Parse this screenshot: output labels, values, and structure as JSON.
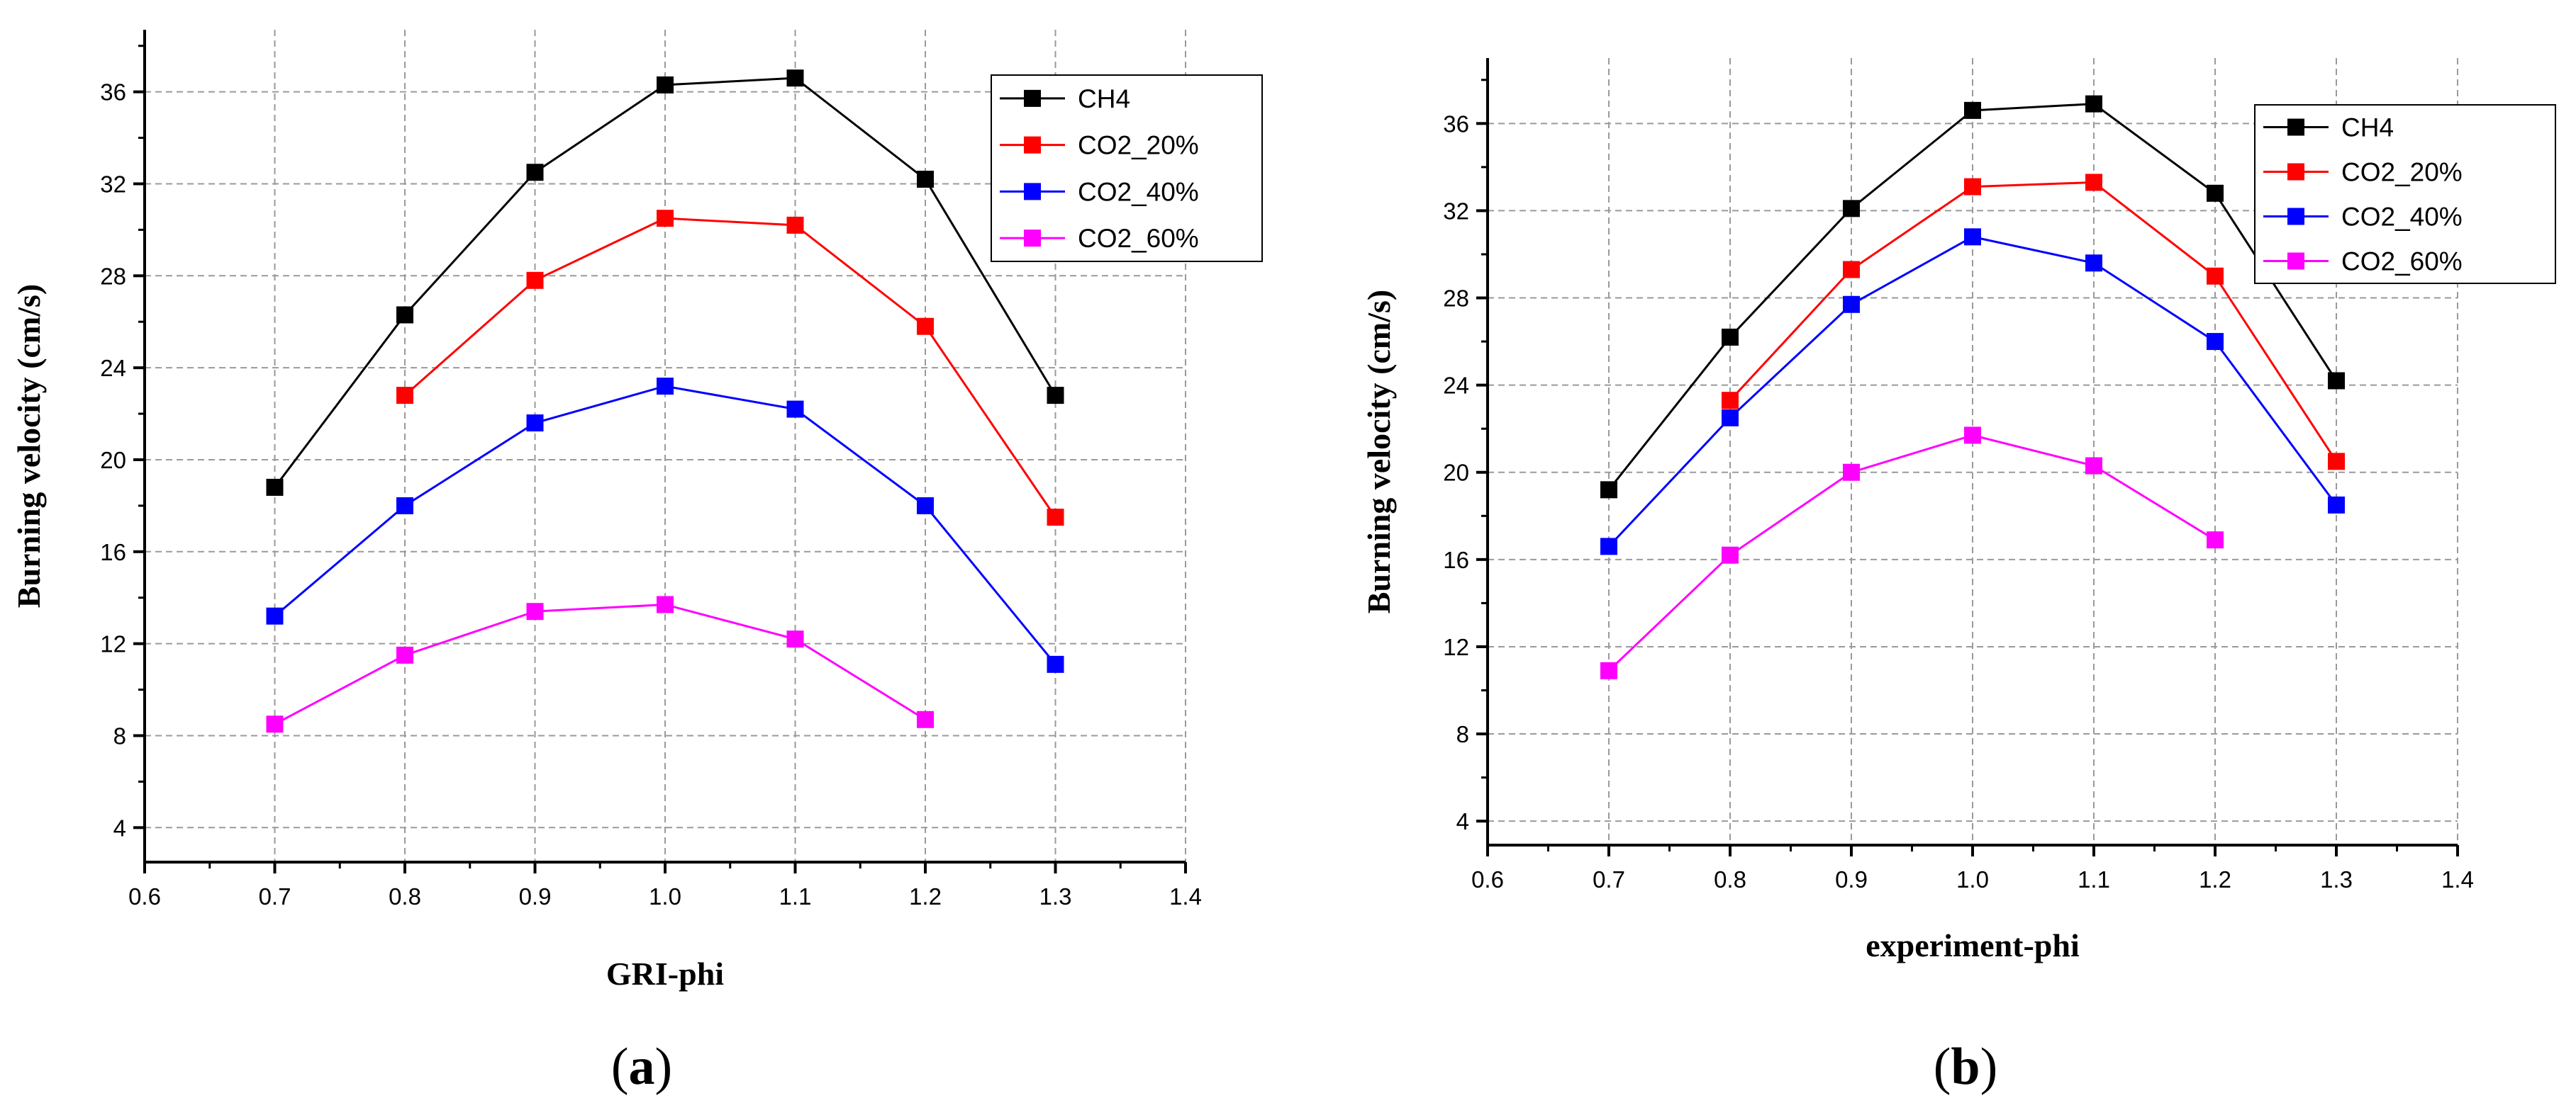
{
  "chart_data": [
    {
      "type": "line",
      "panel": "a",
      "caption_letter": "a",
      "xlabel": "GRI-phi",
      "ylabel": "Burning velocity (cm/s)",
      "xlim": [
        0.6,
        1.4
      ],
      "ylim": [
        2.5,
        38.7
      ],
      "xticks": [
        0.6,
        0.7,
        0.8,
        0.9,
        1.0,
        1.1,
        1.2,
        1.3,
        1.4
      ],
      "xtick_labels": [
        "0.6",
        "0.7",
        "0.8",
        "0.9",
        "1.0",
        "1.1",
        "1.2",
        "1.3",
        "1.4"
      ],
      "yticks": [
        4,
        8,
        12,
        16,
        20,
        24,
        28,
        32,
        36
      ],
      "ytick_labels": [
        "4",
        "8",
        "12",
        "16",
        "20",
        "24",
        "28",
        "32",
        "36"
      ],
      "grid": true,
      "legend": "top-right",
      "series": [
        {
          "name": "CH4",
          "color": "#000000",
          "x": [
            0.7,
            0.8,
            0.9,
            1.0,
            1.1,
            1.2,
            1.3
          ],
          "values": [
            18.8,
            26.3,
            32.5,
            36.3,
            36.6,
            32.2,
            22.8
          ]
        },
        {
          "name": "CO2_20%",
          "color": "#ff0000",
          "x": [
            0.8,
            0.9,
            1.0,
            1.1,
            1.2,
            1.3
          ],
          "values": [
            22.8,
            27.8,
            30.5,
            30.2,
            25.8,
            17.5
          ]
        },
        {
          "name": "CO2_40%",
          "color": "#0000ff",
          "x": [
            0.7,
            0.8,
            0.9,
            1.0,
            1.1,
            1.2,
            1.3
          ],
          "values": [
            13.2,
            18.0,
            21.6,
            23.2,
            22.2,
            18.0,
            11.1
          ]
        },
        {
          "name": "CO2_60%",
          "color": "#ff00ff",
          "x": [
            0.7,
            0.8,
            0.9,
            1.0,
            1.1,
            1.2
          ],
          "values": [
            8.5,
            11.5,
            13.4,
            13.7,
            12.2,
            8.7
          ]
        }
      ]
    },
    {
      "type": "line",
      "panel": "b",
      "caption_letter": "b",
      "xlabel": "experiment-phi",
      "ylabel": "Burning velocity (cm/s)",
      "xlim": [
        0.6,
        1.4
      ],
      "ylim": [
        2.9,
        39.0
      ],
      "xticks": [
        0.6,
        0.7,
        0.8,
        0.9,
        1.0,
        1.1,
        1.2,
        1.3,
        1.4
      ],
      "xtick_labels": [
        "0.6",
        "0.7",
        "0.8",
        "0.9",
        "1.0",
        "1.1",
        "1.2",
        "1.3",
        "1.4"
      ],
      "yticks": [
        4,
        8,
        12,
        16,
        20,
        24,
        28,
        32,
        36
      ],
      "ytick_labels": [
        "4",
        "8",
        "12",
        "16",
        "20",
        "24",
        "28",
        "32",
        "36"
      ],
      "grid": true,
      "legend": "top-right",
      "series": [
        {
          "name": "CH4",
          "color": "#000000",
          "x": [
            0.7,
            0.8,
            0.9,
            1.0,
            1.1,
            1.2,
            1.3
          ],
          "values": [
            19.2,
            26.2,
            32.1,
            36.6,
            36.9,
            32.8,
            24.2
          ]
        },
        {
          "name": "CO2_20%",
          "color": "#ff0000",
          "x": [
            0.8,
            0.9,
            1.0,
            1.1,
            1.2,
            1.3
          ],
          "values": [
            23.3,
            29.3,
            33.1,
            33.3,
            29.0,
            20.5
          ]
        },
        {
          "name": "CO2_40%",
          "color": "#0000ff",
          "x": [
            0.7,
            0.8,
            0.9,
            1.0,
            1.1,
            1.2,
            1.3
          ],
          "values": [
            16.6,
            22.5,
            27.7,
            30.8,
            29.6,
            26.0,
            18.5
          ]
        },
        {
          "name": "CO2_60%",
          "color": "#ff00ff",
          "x": [
            0.7,
            0.8,
            0.9,
            1.0,
            1.1,
            1.2
          ],
          "values": [
            10.9,
            16.2,
            20.0,
            21.7,
            20.3,
            16.9
          ]
        }
      ]
    }
  ]
}
